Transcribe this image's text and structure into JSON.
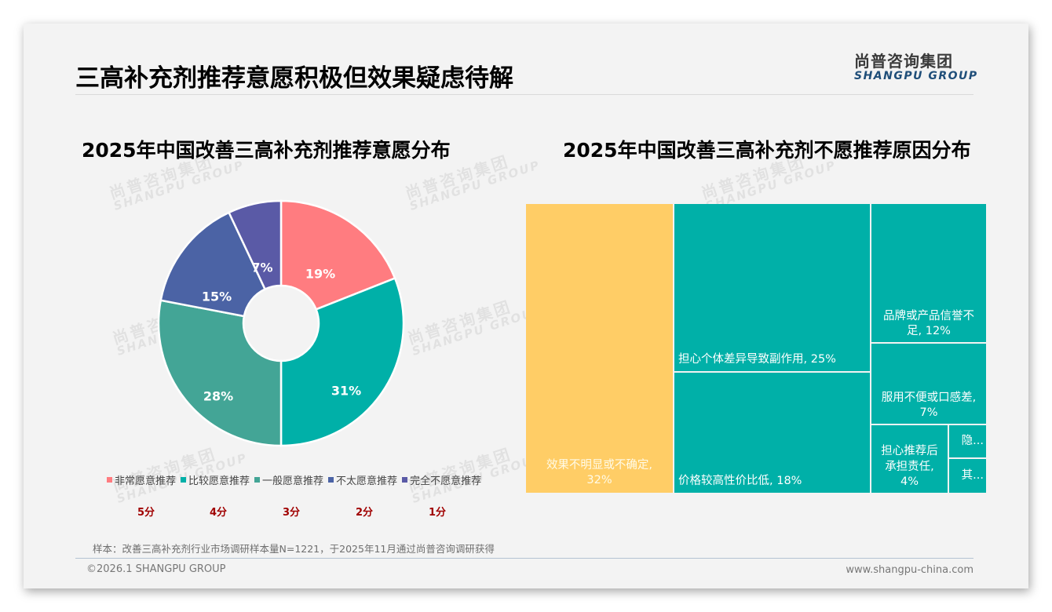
{
  "header": {
    "title": "三高补充剂推荐意愿积极但效果疑虑待解",
    "logo_cn": "尚普咨询集团",
    "logo_en": "SHANGPU GROUP"
  },
  "watermark": {
    "cn": "尚普咨询集团",
    "en": "SHANGPU GROUP"
  },
  "left_chart": {
    "title": "2025年中国改善三高补充剂推荐意愿分布",
    "scores": [
      "5分",
      "4分",
      "3分",
      "2分",
      "1分"
    ]
  },
  "right_chart": {
    "title": "2025年中国改善三高补充剂不愿推荐原因分布"
  },
  "chart_data": [
    {
      "type": "pie",
      "variant": "donut",
      "title": "2025年中国改善三高补充剂推荐意愿分布",
      "categories": [
        "非常愿意推荐",
        "比较愿意推荐",
        "一般愿意推荐",
        "不太愿意推荐",
        "完全不愿意推荐"
      ],
      "values": [
        19,
        31,
        28,
        15,
        7
      ],
      "labels": [
        "19%",
        "31%",
        "28%",
        "15%",
        "7%"
      ],
      "scores": [
        "5分",
        "4分",
        "3分",
        "2分",
        "1分"
      ],
      "colors": [
        "#ff7c80",
        "#00b0a8",
        "#43a596",
        "#4b63a5",
        "#5a5aa6"
      ],
      "legend_position": "bottom",
      "start_angle": "12 o'clock, clockwise"
    },
    {
      "type": "treemap",
      "title": "2025年中国改善三高补充剂不愿推荐原因分布",
      "categories": [
        "效果不明显或不确定",
        "担心个体差异导致副作用",
        "价格较高性价比低",
        "品牌或产品信誉不足",
        "服用不便或口感差",
        "担心推荐后承担责任",
        "隐...",
        "其..."
      ],
      "values": [
        32,
        25,
        18,
        12,
        7,
        4,
        null,
        null
      ],
      "labels": [
        "效果不明显或不确定, 32%",
        "担心个体差异导致副作用, 25%",
        "价格较高性价比低, 18%",
        "品牌或产品信誉不足, 12%",
        "服用不便或口感差, 7%",
        "担心推荐后承担责任, 4%",
        "隐...",
        "其..."
      ],
      "colors": {
        "highlight": "#ffcd66",
        "default": "#00b0a8"
      }
    }
  ],
  "pie": {
    "labels": [
      "19%",
      "31%",
      "28%",
      "15%",
      "7%"
    ]
  },
  "legend": [
    {
      "label": "非常愿意推荐",
      "color": "#ff7c80"
    },
    {
      "label": "比较愿意推荐",
      "color": "#00b0a8"
    },
    {
      "label": "一般愿意推荐",
      "color": "#43a596"
    },
    {
      "label": "不太愿意推荐",
      "color": "#4b63a5"
    },
    {
      "label": "完全不愿意推荐",
      "color": "#5a5aa6"
    }
  ],
  "treemap": {
    "tiles": [
      {
        "line1": "效果不明显或不确定,",
        "line2": "32%"
      },
      {
        "line1": "担心个体差异导致副作用, 25%"
      },
      {
        "line1": "价格较高性价比低, 18%"
      },
      {
        "line1": "品牌或产品信誉不",
        "line2": "足, 12%"
      },
      {
        "line1": "服用不便或口感差,",
        "line2": "7%"
      },
      {
        "line1": "担心推荐后",
        "line2": "承担责任,",
        "line3": "4%"
      },
      {
        "line1": "隐..."
      },
      {
        "line1": "其..."
      }
    ]
  },
  "footer": {
    "note": "样本：改善三高补充剂行业市场调研样本量N=1221，于2025年11月通过尚普咨询调研获得",
    "copyright": "©2026.1 SHANGPU GROUP",
    "website": "www.shangpu-china.com"
  }
}
